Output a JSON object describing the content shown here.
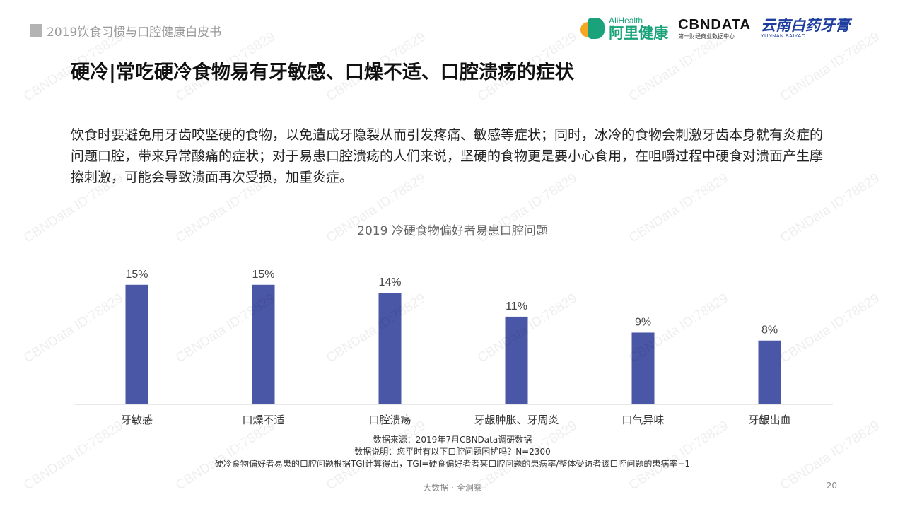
{
  "report_title": "2019饮食习惯与口腔健康白皮书",
  "logos": {
    "alihealth_en": "AliHealth",
    "alihealth_cn": "阿里健康",
    "cbndata": "CBNDATA",
    "cbndata_sub": "第一财经商业数据中心",
    "yunnan_cn": "云南白药牙膏",
    "yunnan_en": "YUNNAN BAIYAO"
  },
  "headline": "硬冷|常吃硬冷食物易有牙敏感、口燥不适、口腔溃疡的症状",
  "description": "饮食时要避免用牙齿咬坚硬的食物，以免造成牙隐裂从而引发疼痛、敏感等症状；同时，冰冷的食物会刺激牙齿本身就有炎症的问题口腔，带来异常酸痛的症状；对于易患口腔溃疡的人们来说，坚硬的食物更是要小心食用，在咀嚼过程中硬食对溃面产生摩擦刺激，可能会导致溃面再次受损，加重炎症。",
  "chart_data": {
    "type": "bar",
    "title": "2019 冷硬食物偏好者易患口腔问题",
    "categories": [
      "牙敏感",
      "口燥不适",
      "口腔溃疡",
      "牙龈肿胀、牙周炎",
      "口气异味",
      "牙龈出血"
    ],
    "values": [
      15,
      15,
      14,
      11,
      9,
      8
    ],
    "value_labels": [
      "15%",
      "15%",
      "14%",
      "11%",
      "9%",
      "8%"
    ],
    "ylim": [
      0,
      19.5
    ],
    "bar_color": "#4a56a6",
    "grid": false,
    "xlabel": "",
    "ylabel": ""
  },
  "notes": [
    "数据来源：2019年7月CBNData调研数据",
    "数据说明：您平时有以下口腔问题困扰吗？N=2300",
    "硬冷食物偏好者易患的口腔问题根据TGI计算得出，TGI=硬食偏好者者某口腔问题的患病率/整体受访者该口腔问题的患病率−1"
  ],
  "footer": "大数据 · 全洞察",
  "page_number": "20",
  "watermark_text": "CBNData ID:78829"
}
